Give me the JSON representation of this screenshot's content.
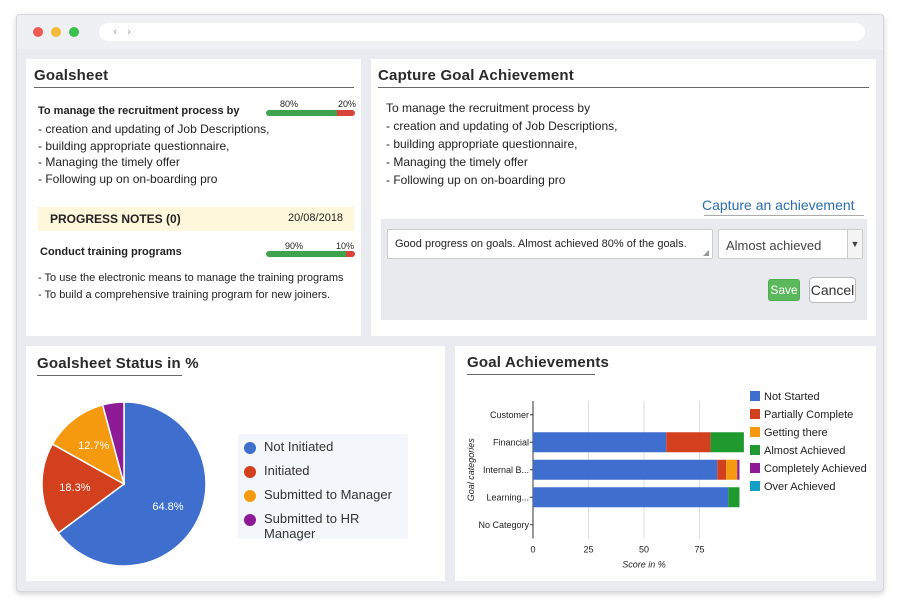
{
  "browser": {
    "nav_glyph": "‹ ›"
  },
  "goalsheet": {
    "title": "Goalsheet",
    "goal_lines": [
      "To manage the recruitment process by",
      "- creation and updating of Job Descriptions,",
      "- building appropriate questionnaire,",
      "- Managing the timely offer",
      "- Following up on on-boarding pro"
    ],
    "goal_progress": {
      "done_label": "80%",
      "remaining_label": "20%",
      "done": 0.8
    },
    "notes_header": "PROGRESS NOTES (0)",
    "notes_date": "20/08/2018",
    "task_title": "Conduct training programs",
    "task_progress": {
      "done_label": "90%",
      "remaining_label": "10%",
      "done": 0.9
    },
    "task_lines": [
      "- To use the electronic means to manage the training programs",
      "- To build a comprehensive training program for new joiners."
    ]
  },
  "capture": {
    "title": "Capture Goal Achievement",
    "lines": [
      "To manage the recruitment process by",
      "- creation and updating of Job Descriptions,",
      "- building appropriate questionnaire,",
      "- Managing the timely offer",
      "- Following up on on-boarding pro"
    ],
    "link": "Capture an achievement",
    "comment_value": "Good progress on goals. Almost achieved 80% of the goals.",
    "status_selected": "Almost achieved",
    "save_label": "Save",
    "cancel_label": "Cancel"
  },
  "status_chart": {
    "title": "Goalsheet Status in %",
    "chart_data": {
      "type": "pie",
      "slices": [
        {
          "name": "Not Initiated",
          "value": 64.8,
          "label": "64.8%",
          "color": "#3e6fcf"
        },
        {
          "name": "Initiated",
          "value": 18.3,
          "label": "18.3%",
          "color": "#d2401e"
        },
        {
          "name": "Submitted to Manager",
          "value": 12.7,
          "label": "12.7%",
          "color": "#f59a0e"
        },
        {
          "name": "Submitted to HR Manager",
          "value": 4.2,
          "label": "",
          "color": "#8e1a96"
        }
      ],
      "legend_position": "right"
    }
  },
  "achievements_chart": {
    "title": "Goal Achievements",
    "chart_data": {
      "type": "bar",
      "orientation": "horizontal",
      "stacked": true,
      "categories": [
        "Customer",
        "Financial",
        "Internal B...",
        "Learning...",
        "No Category"
      ],
      "series": [
        {
          "name": "Not Started",
          "color": "#3e6fcf",
          "values": [
            0,
            60,
            83,
            88,
            0
          ]
        },
        {
          "name": "Partially Complete",
          "color": "#d2401e",
          "values": [
            0,
            20,
            4,
            0,
            0
          ]
        },
        {
          "name": "Getting there",
          "color": "#f59a0e",
          "values": [
            0,
            0,
            5,
            0,
            0
          ]
        },
        {
          "name": "Almost Achieved",
          "color": "#1f9a2f",
          "values": [
            0,
            15,
            0,
            5,
            0
          ]
        },
        {
          "name": "Completely Achieved",
          "color": "#8e1a96",
          "values": [
            0,
            0,
            1,
            0,
            0
          ]
        },
        {
          "name": "Over Achieved",
          "color": "#14a0c4",
          "values": [
            0,
            0,
            0,
            0,
            0
          ]
        }
      ],
      "xlabel": "Score in %",
      "ylabel": "Goal categories",
      "xticks": [
        "0",
        "25",
        "50",
        "75"
      ],
      "xlim": [
        0,
        100
      ],
      "grid": true,
      "legend_position": "right"
    }
  }
}
